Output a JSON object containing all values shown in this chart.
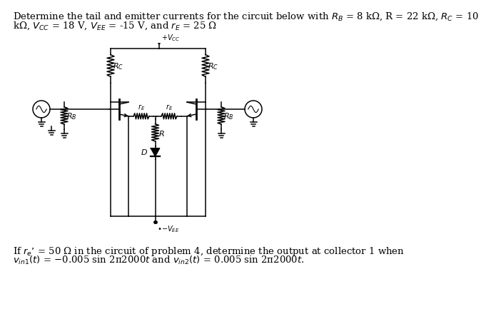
{
  "text_top1": "Determine the tail and emitter currents for the circuit below with $R_B$ = 8 kΩ, R = 22 kΩ, $R_C$ = 10",
  "text_top2": "kΩ, $V_{CC}$ = 18 V, $V_{EE}$ = -15 V, and $r_E$ = 25 Ω",
  "text_bot1": "If $r_e$’ = 50 Ω in the circuit of problem 4, determine the output at collector 1 when",
  "text_bot2": "$v_{in1}(t)$ = −0.005 sin 2π2000$t$ and $v_{in2}(t)$ = 0.005 sin 2π2000$t$.",
  "bg_color": "#ffffff",
  "font_size_text": 9.5,
  "font_size_label": 8,
  "font_size_small": 7
}
